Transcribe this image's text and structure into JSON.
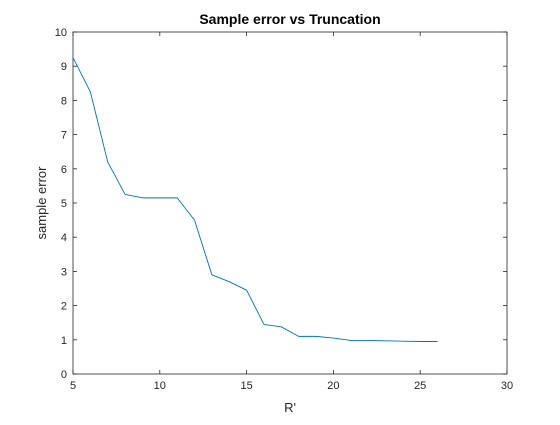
{
  "chart_data": {
    "type": "line",
    "title": "Sample error vs Truncation",
    "xlabel": "R'",
    "ylabel": "sample error",
    "xlim": [
      5,
      30
    ],
    "ylim": [
      0,
      10
    ],
    "xticks": [
      5,
      10,
      15,
      20,
      25,
      30
    ],
    "yticks": [
      0,
      1,
      2,
      3,
      4,
      5,
      6,
      7,
      8,
      9,
      10
    ],
    "grid": false,
    "legend": "none",
    "series": [
      {
        "color": "#0072bd",
        "x": [
          5,
          6,
          7,
          8,
          9,
          10,
          11,
          12,
          13,
          14,
          15,
          16,
          17,
          18,
          19,
          20,
          21,
          22,
          23,
          24,
          25,
          26
        ],
        "y": [
          9.25,
          8.25,
          6.2,
          5.25,
          5.15,
          5.15,
          5.15,
          4.5,
          2.9,
          2.7,
          2.45,
          1.45,
          1.38,
          1.1,
          1.1,
          1.05,
          0.98,
          0.98,
          0.97,
          0.96,
          0.95,
          0.95
        ]
      }
    ]
  }
}
